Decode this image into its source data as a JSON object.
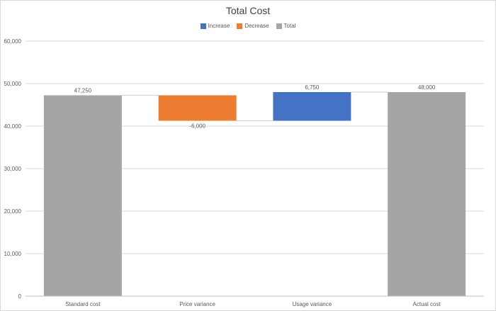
{
  "chart_data": {
    "type": "waterfall",
    "title": "Total Cost",
    "legend": [
      {
        "label": "Increase",
        "color": "#4472c4"
      },
      {
        "label": "Decrease",
        "color": "#ed7d31"
      },
      {
        "label": "Total",
        "color": "#a5a5a5"
      }
    ],
    "categories": [
      "Standard cost",
      "Price variance",
      "Usage variance",
      "Actual cost"
    ],
    "values": [
      47250,
      -6000,
      6750,
      48000
    ],
    "kinds": [
      "total",
      "decrease",
      "increase",
      "total"
    ],
    "data_labels": [
      "47,250",
      "-6,000",
      "6,750",
      "48,000"
    ],
    "ylim": [
      0,
      60000
    ],
    "yticks": [
      0,
      10000,
      20000,
      30000,
      40000,
      50000,
      60000
    ],
    "ytick_labels": [
      "0",
      "10,000",
      "20,000",
      "30,000",
      "40,000",
      "50,000",
      "60,000"
    ],
    "gridlines": true
  }
}
